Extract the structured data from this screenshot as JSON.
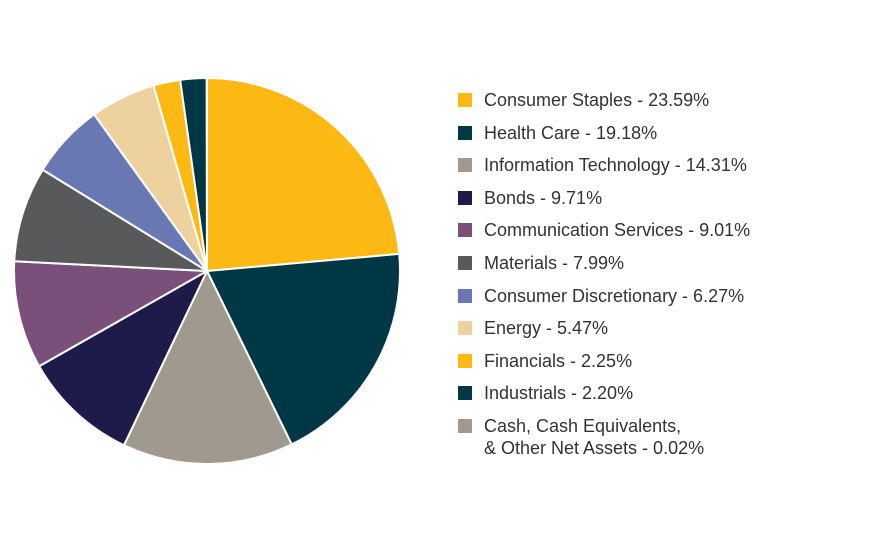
{
  "chart_data": {
    "type": "pie",
    "title": "",
    "start_angle": "12 o'clock",
    "direction": "clockwise",
    "slices": [
      {
        "label": "Consumer Staples - 23.59%",
        "value": 23.59,
        "color": "#FDB913"
      },
      {
        "label": "Health Care - 19.18%",
        "value": 19.18,
        "color": "#003745"
      },
      {
        "label": "Information Technology - 14.31%",
        "value": 14.31,
        "color": "#A0998E"
      },
      {
        "label": "Bonds - 9.71%",
        "value": 9.71,
        "color": "#1E1B4B"
      },
      {
        "label": "Communication Services - 9.01%",
        "value": 9.01,
        "color": "#7A507A"
      },
      {
        "label": "Materials - 7.99%",
        "value": 7.99,
        "color": "#58595B"
      },
      {
        "label": "Consumer Discretionary - 6.27%",
        "value": 6.27,
        "color": "#6977B3"
      },
      {
        "label": "Energy - 5.47%",
        "value": 5.47,
        "color": "#EDD19F"
      },
      {
        "label": "Financials - 2.25%",
        "value": 2.25,
        "color": "#FDB913"
      },
      {
        "label": "Industrials - 2.20%",
        "value": 2.2,
        "color": "#003745"
      },
      {
        "label": "Cash, Cash Equivalents,\n& Other Net Assets - 0.02%",
        "value": 0.02,
        "color": "#A0998E"
      }
    ],
    "legend_position": "right"
  }
}
